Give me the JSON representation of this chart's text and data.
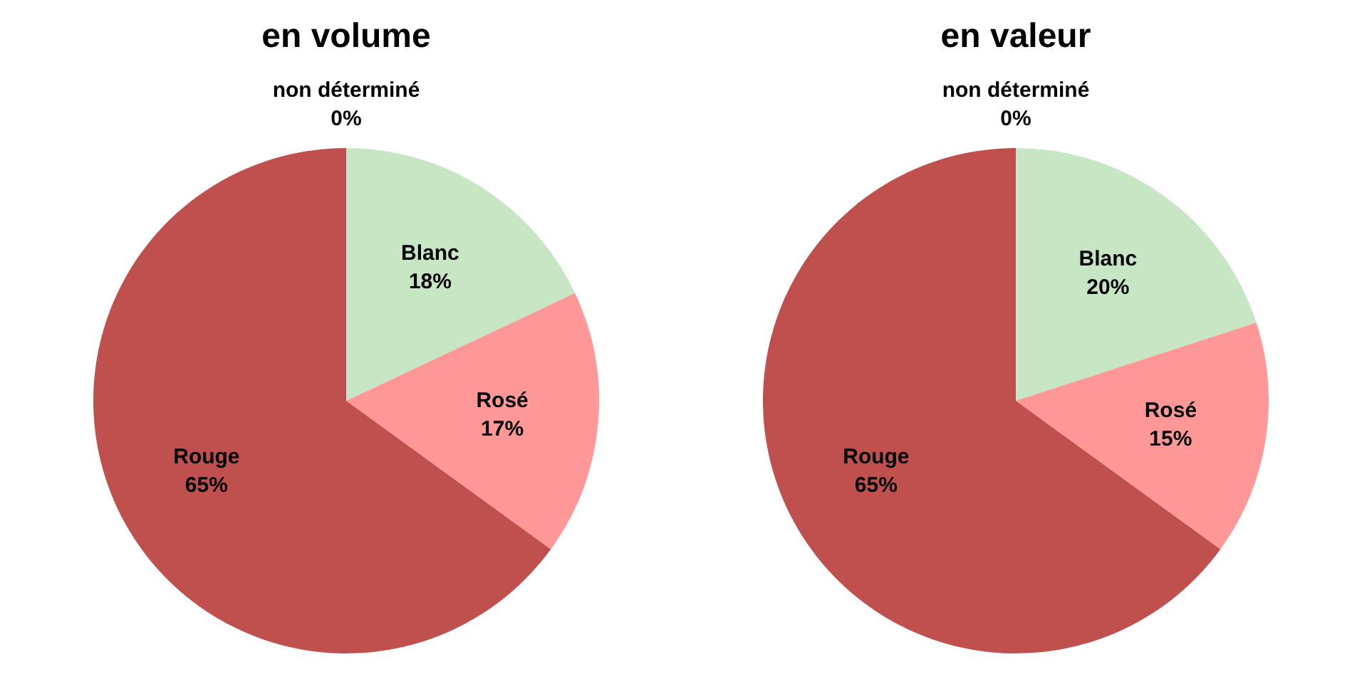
{
  "chart_data": [
    {
      "type": "pie",
      "title": "en volume",
      "categories": [
        "Blanc",
        "Rosé",
        "Rouge",
        "non déterminé"
      ],
      "values": [
        18,
        17,
        65,
        0
      ],
      "value_labels": [
        "18%",
        "17%",
        "65%",
        "0%"
      ],
      "colors": [
        "#c6e6c4",
        "#ff9896",
        "#c0504d",
        "#8064a2"
      ],
      "legend": false
    },
    {
      "type": "pie",
      "title": "en valeur",
      "categories": [
        "Blanc",
        "Rosé",
        "Rouge",
        "non déterminé"
      ],
      "values": [
        20,
        15,
        65,
        0
      ],
      "value_labels": [
        "20%",
        "15%",
        "65%",
        "0%"
      ],
      "colors": [
        "#c6e6c4",
        "#ff9896",
        "#c0504d",
        "#8064a2"
      ],
      "legend": false
    }
  ]
}
